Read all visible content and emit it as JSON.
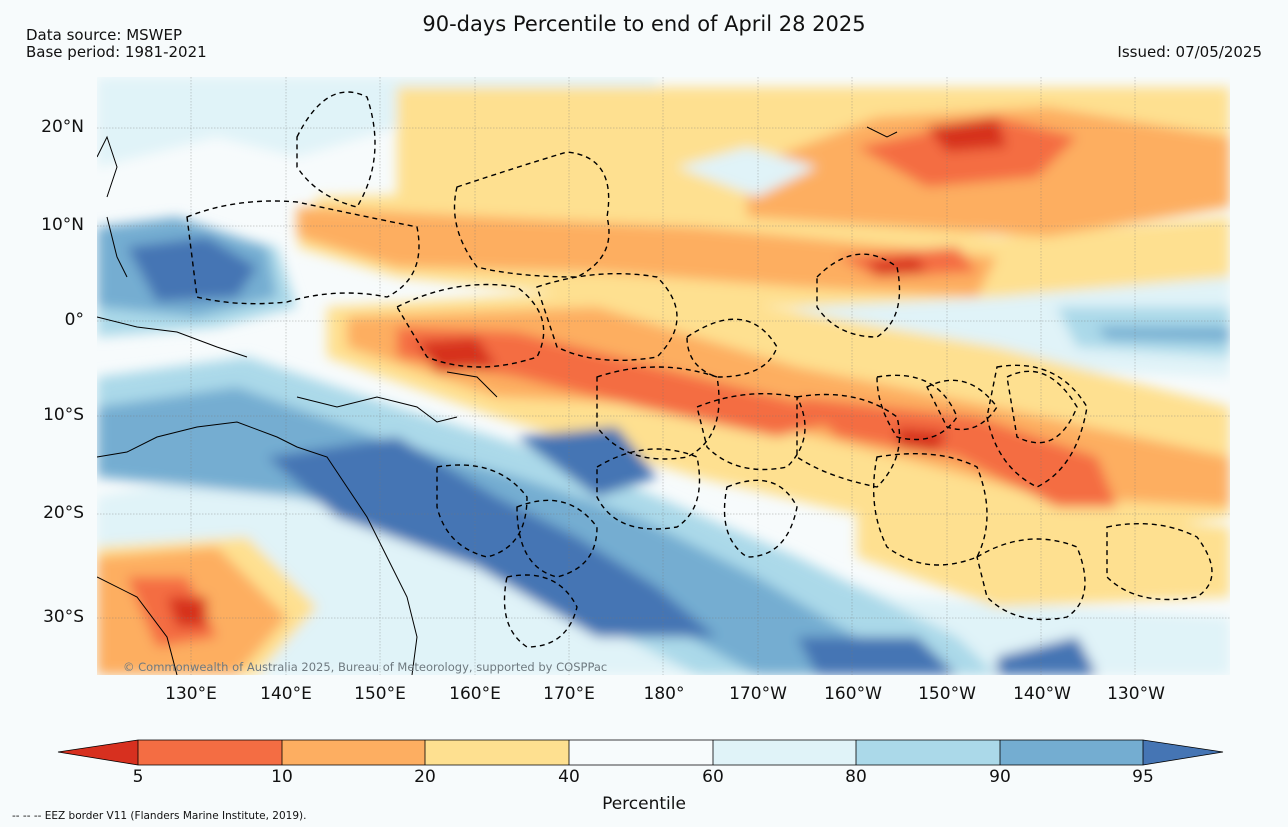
{
  "header": {
    "title": "90-days Percentile to end of April 28 2025",
    "data_source": "Data source: MSWEP",
    "base_period": "Base period: 1981-2021",
    "issued": "Issued: 07/05/2025"
  },
  "map": {
    "latitude_labels": [
      "20°N",
      "10°N",
      "0°",
      "10°S",
      "20°S",
      "30°S"
    ],
    "longitude_labels": [
      "130°E",
      "140°E",
      "150°E",
      "160°E",
      "170°E",
      "180°",
      "170°W",
      "160°W",
      "150°W",
      "140°W",
      "130°W"
    ],
    "copyright": "© Commonwealth of Australia 2025, Bureau of Meteorology, supported by COSPPac",
    "colors": {
      "below_5": "#d7301f",
      "p5_10": "#f46d43",
      "p10_20": "#fdae61",
      "p20_40": "#fee090",
      "p40_60": "#f7fbfc",
      "p60_80": "#e0f3f8",
      "p80_90": "#abd9e9",
      "p90_95": "#74add1",
      "above_95": "#4575b4"
    }
  },
  "colorbar": {
    "ticks": [
      "5",
      "10",
      "20",
      "40",
      "60",
      "80",
      "90",
      "95"
    ],
    "label": "Percentile",
    "colors": [
      "#d7301f",
      "#f46d43",
      "#fdae61",
      "#fee090",
      "#f7fbfc",
      "#e0f3f8",
      "#abd9e9",
      "#74add1",
      "#4575b4"
    ]
  },
  "footnote": "--  --  -- EEZ border V11 (Flanders Marine Institute, 2019)."
}
